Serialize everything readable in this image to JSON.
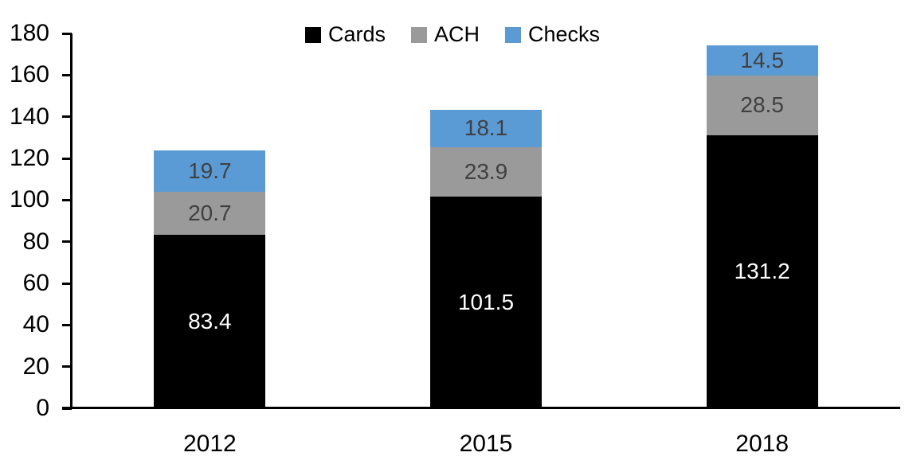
{
  "chart_data": {
    "type": "bar",
    "stacked": true,
    "title": "",
    "xlabel": "",
    "ylabel": "",
    "categories": [
      "2012",
      "2015",
      "2018"
    ],
    "series": [
      {
        "name": "Cards",
        "color": "#000000",
        "label_color": "#ffffff",
        "values": [
          83.4,
          101.5,
          131.2
        ]
      },
      {
        "name": "ACH",
        "color": "#9A9A9A",
        "label_color": "#404040",
        "values": [
          20.7,
          23.9,
          28.5
        ]
      },
      {
        "name": "Checks",
        "color": "#5B9BD5",
        "label_color": "#404040",
        "values": [
          19.7,
          18.1,
          14.5
        ]
      }
    ],
    "ylim": [
      0,
      180
    ],
    "yticks": [
      0,
      20,
      40,
      60,
      80,
      100,
      120,
      140,
      160,
      180
    ],
    "grid": false,
    "legend_position": "top-center",
    "axis_color": "#000000"
  }
}
